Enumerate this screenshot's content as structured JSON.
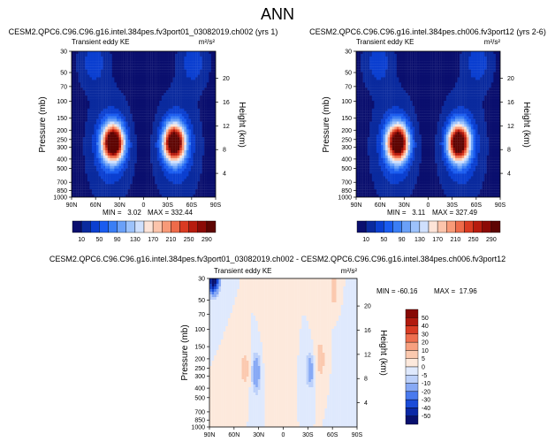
{
  "figure": {
    "title": "ANN",
    "var_label": "Transient eddy KE",
    "units": "m²/s²",
    "ylabel_left": "Pressure (mb)",
    "ylabel_right": "Height (km)"
  },
  "chart_data": [
    {
      "type": "heatmap",
      "id": "top-left",
      "title": "CESM2.QPC6.C96.C96.g16.intel.384pes.fv3port01_03082019.ch002 (yrs 1)",
      "subtitle": "Transient eddy KE",
      "units": "m²/s²",
      "xticks": [
        "90N",
        "60N",
        "30N",
        "0",
        "30S",
        "60S",
        "90S"
      ],
      "xlim": [
        90,
        -90
      ],
      "yticks": [
        30,
        50,
        70,
        100,
        150,
        200,
        250,
        300,
        400,
        500,
        700,
        850,
        1000
      ],
      "ylim": [
        1000,
        30
      ],
      "height_ticks_km": [
        4,
        8,
        12,
        16,
        20
      ],
      "min_label": "MIN =   3.02",
      "max_label": "MAX = 332.44",
      "min": 3.02,
      "max": 332.44,
      "jets": [
        {
          "lat": 38,
          "p": 270,
          "peak": 332
        },
        {
          "lat": -38,
          "p": 270,
          "peak": 328
        }
      ]
    },
    {
      "type": "heatmap",
      "id": "top-right",
      "title": "CESM2.QPC6.C96.C96.g16.intel.384pes.ch006.fv3port12 (yrs 2-6)",
      "subtitle": "Transient eddy KE",
      "units": "m²/s²",
      "xticks": [
        "90N",
        "60N",
        "30N",
        "0",
        "30S",
        "60S",
        "90S"
      ],
      "xlim": [
        90,
        -90
      ],
      "yticks": [
        30,
        50,
        70,
        100,
        150,
        200,
        250,
        300,
        400,
        500,
        700,
        850,
        1000
      ],
      "ylim": [
        1000,
        30
      ],
      "height_ticks_km": [
        4,
        8,
        12,
        16,
        20
      ],
      "min_label": "MIN =   3.11",
      "max_label": "MAX = 327.49",
      "min": 3.11,
      "max": 327.49,
      "jets": [
        {
          "lat": 38,
          "p": 270,
          "peak": 327
        },
        {
          "lat": -38,
          "p": 270,
          "peak": 322
        }
      ]
    },
    {
      "type": "heatmap",
      "id": "bottom-diff",
      "title": "CESM2.QPC6.C96.C96.g16.intel.384pes.fv3port01_03082019.ch002 - CESM2.QPC6.C96.C96.g16.intel.384pes.ch006.fv3port12",
      "subtitle": "Transient eddy KE",
      "units": "m²/s²",
      "xticks": [
        "90N",
        "60N",
        "30N",
        "0",
        "30S",
        "60S",
        "90S"
      ],
      "xlim": [
        90,
        -90
      ],
      "yticks": [
        30,
        50,
        70,
        100,
        150,
        200,
        250,
        300,
        400,
        500,
        700,
        850,
        1000
      ],
      "ylim": [
        1000,
        30
      ],
      "height_ticks_km": [
        4,
        8,
        12,
        16,
        20
      ],
      "min_label": "MIN = -60.16",
      "max_label": "MAX =  17.96",
      "min": -60.16,
      "max": 17.96
    }
  ],
  "colorbars": {
    "abs": {
      "labels": [
        "10",
        "50",
        "90",
        "130",
        "170",
        "210",
        "250",
        "290"
      ],
      "levels": [
        10,
        30,
        50,
        70,
        90,
        110,
        130,
        150,
        170,
        190,
        210,
        230,
        250,
        270,
        290
      ],
      "colors": [
        "#0a0f6e",
        "#0a2a9e",
        "#0b3fd0",
        "#1a5cf0",
        "#3a7ef5",
        "#6aa0f8",
        "#9cc2fb",
        "#cfe0fd",
        "#fde4d8",
        "#fcc4ab",
        "#f89a78",
        "#ee6b4a",
        "#da3b22",
        "#b71b0e",
        "#8c0a06",
        "#5e0503"
      ]
    },
    "diff": {
      "labels": [
        "50",
        "40",
        "30",
        "20",
        "10",
        "5",
        "0",
        "-5",
        "-10",
        "-20",
        "-30",
        "-40",
        "-50"
      ],
      "levels": [
        -50,
        -40,
        -30,
        -20,
        -10,
        -5,
        0,
        5,
        10,
        20,
        30,
        40,
        50
      ],
      "colors": [
        "#08106e",
        "#0a28a6",
        "#1a4bd8",
        "#4a7aee",
        "#87a9f5",
        "#bcd0fa",
        "#dfe9fd",
        "#fde9dc",
        "#fbc9af",
        "#f7a07f",
        "#ee6f4f",
        "#d93c24",
        "#b11a0e",
        "#870905"
      ]
    }
  }
}
